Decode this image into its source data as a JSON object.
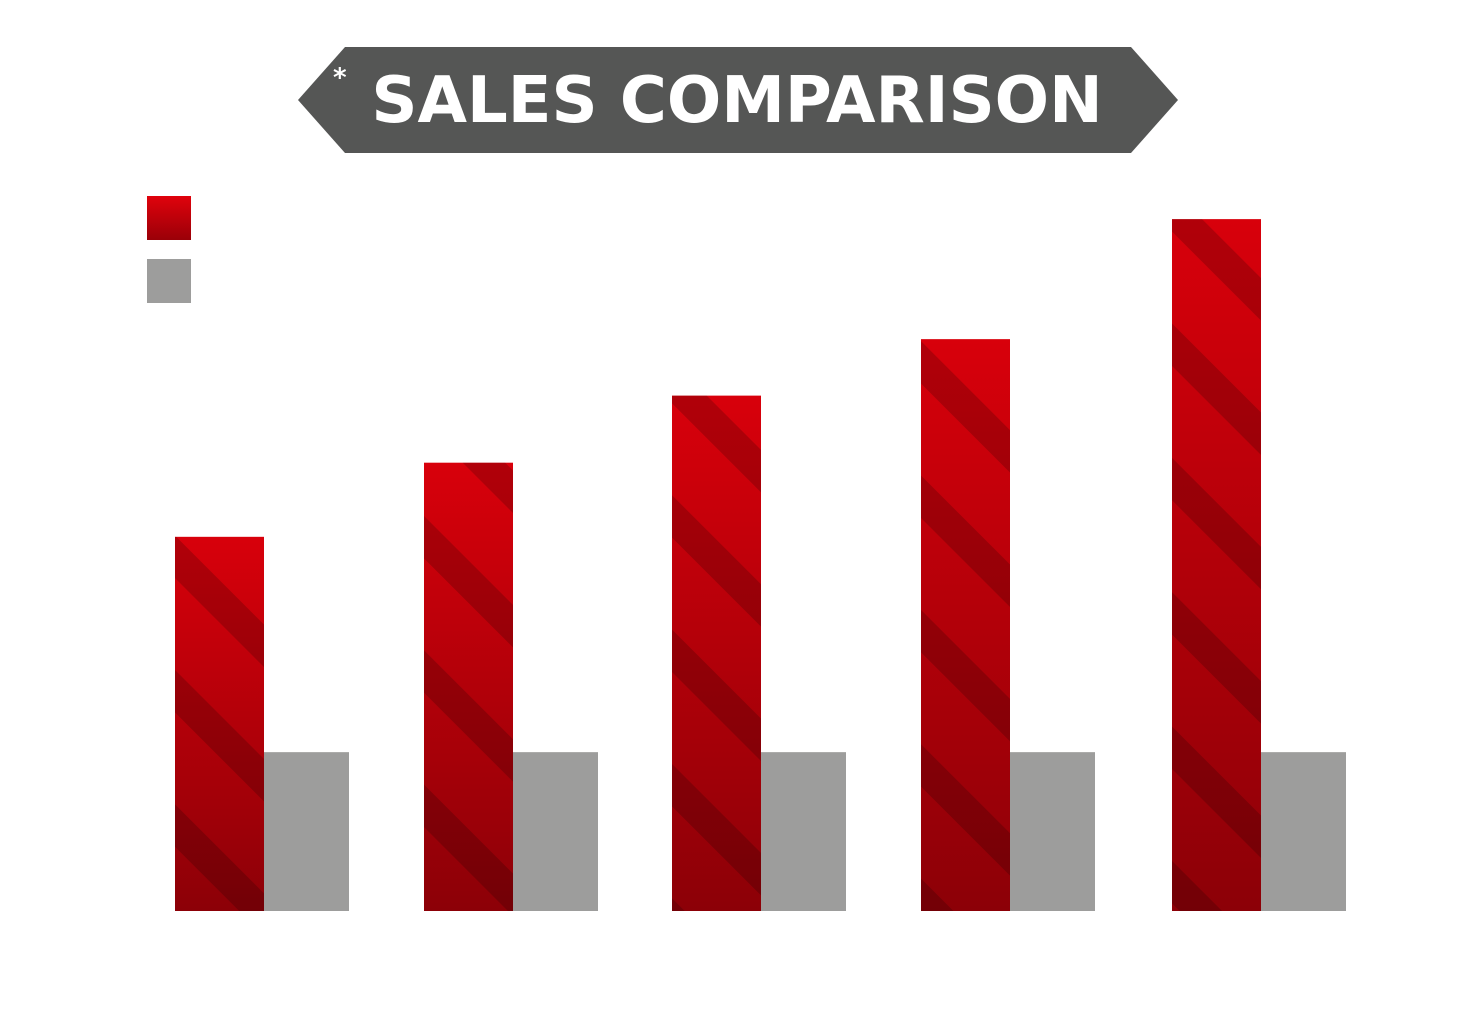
{
  "chart_data": {
    "type": "bar",
    "title": "SALES COMPARISON",
    "title_mark": "*",
    "categories": [
      "",
      "",
      "",
      "",
      ""
    ],
    "series": [
      {
        "values": [
          53,
          63.5,
          73,
          81,
          98
        ],
        "color": "#c8000a",
        "pattern": "diagonal-stripes"
      },
      {
        "values": [
          22.5,
          22.5,
          22.5,
          22.5,
          22.5
        ],
        "color": "#9d9d9c"
      }
    ],
    "ylim": [
      0,
      100
    ],
    "grid": false,
    "legend_position": "top-left",
    "banner_color": "#555655"
  }
}
